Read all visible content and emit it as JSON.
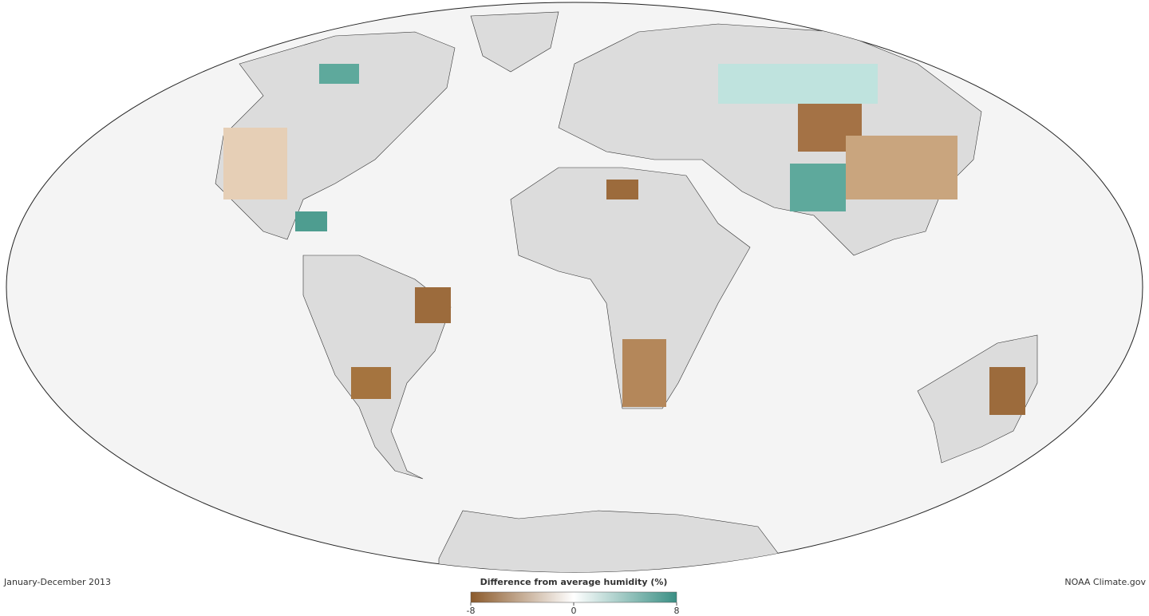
{
  "caption": "January-December 2013",
  "credit": "NOAA Climate.gov",
  "legend": {
    "title": "Difference from average humidity (%)",
    "lim": [
      -8,
      8
    ],
    "ticks": [
      -8,
      0,
      8
    ],
    "colors": [
      "#8b5a2b",
      "#ffffff",
      "#3a8f84"
    ]
  }
}
